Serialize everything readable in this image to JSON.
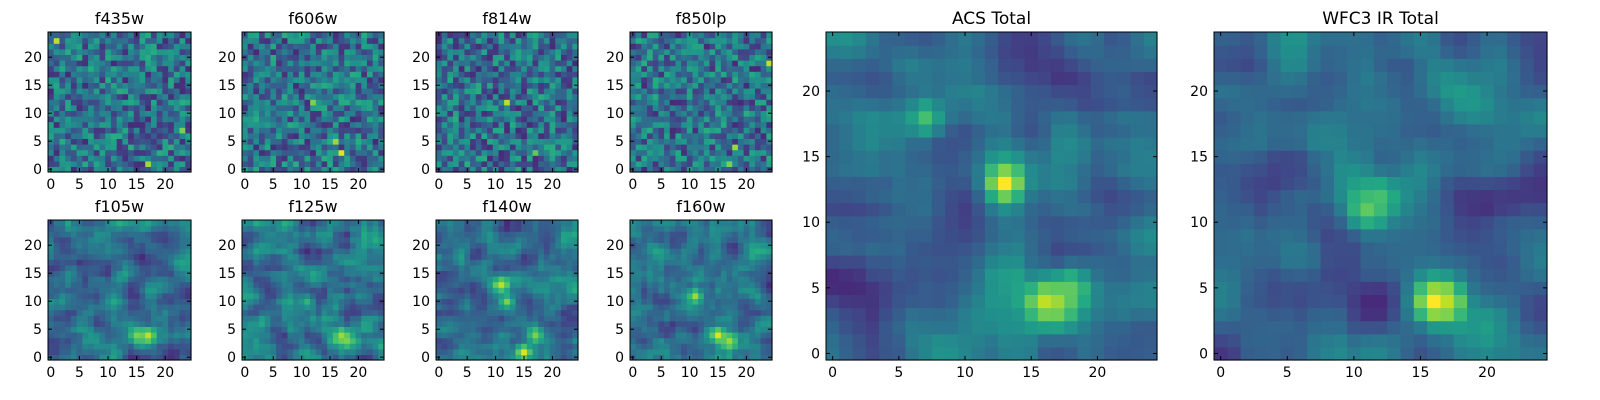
{
  "chart_data": [
    {
      "type": "heatmap",
      "title": "f435w",
      "colormap": "viridis",
      "xlim": [
        -0.5,
        24.5
      ],
      "ylim": [
        -0.5,
        24.5
      ],
      "xticks": [
        0,
        5,
        10,
        15,
        20
      ],
      "yticks": [
        0,
        5,
        10,
        15,
        20
      ],
      "hotspots": [
        {
          "x": 17,
          "y": 1,
          "value": 0.85
        },
        {
          "x": 23,
          "y": 7,
          "value": 0.8
        },
        {
          "x": 1,
          "y": 23,
          "value": 0.9
        }
      ]
    },
    {
      "type": "heatmap",
      "title": "f606w",
      "colormap": "viridis",
      "xlim": [
        -0.5,
        24.5
      ],
      "ylim": [
        -0.5,
        24.5
      ],
      "xticks": [
        0,
        5,
        10,
        15,
        20
      ],
      "yticks": [
        0,
        5,
        10,
        15,
        20
      ],
      "hotspots": [
        {
          "x": 12,
          "y": 12,
          "value": 0.8
        },
        {
          "x": 17,
          "y": 3,
          "value": 0.95
        },
        {
          "x": 16,
          "y": 5,
          "value": 0.85
        }
      ]
    },
    {
      "type": "heatmap",
      "title": "f814w",
      "colormap": "viridis",
      "xlim": [
        -0.5,
        24.5
      ],
      "ylim": [
        -0.5,
        24.5
      ],
      "xticks": [
        0,
        5,
        10,
        15,
        20
      ],
      "yticks": [
        0,
        5,
        10,
        15,
        20
      ],
      "hotspots": [
        {
          "x": 12,
          "y": 12,
          "value": 0.9
        },
        {
          "x": 17,
          "y": 3,
          "value": 0.75
        }
      ]
    },
    {
      "type": "heatmap",
      "title": "f850lp",
      "colormap": "viridis",
      "xlim": [
        -0.5,
        24.5
      ],
      "ylim": [
        -0.5,
        24.5
      ],
      "xticks": [
        0,
        5,
        10,
        15,
        20
      ],
      "yticks": [
        0,
        5,
        10,
        15,
        20
      ],
      "hotspots": [
        {
          "x": 24,
          "y": 19,
          "value": 0.9
        },
        {
          "x": 18,
          "y": 4,
          "value": 0.85
        },
        {
          "x": 17,
          "y": 1,
          "value": 0.8
        }
      ]
    },
    {
      "type": "heatmap",
      "title": "f105w",
      "colormap": "viridis",
      "xlim": [
        -0.5,
        24.5
      ],
      "ylim": [
        -0.5,
        24.5
      ],
      "xticks": [
        0,
        5,
        10,
        15,
        20
      ],
      "yticks": [
        0,
        5,
        10,
        15,
        20
      ],
      "hotspots": [
        {
          "x": 17,
          "y": 4,
          "value": 0.9
        },
        {
          "x": 15,
          "y": 4,
          "value": 0.8
        },
        {
          "x": 11,
          "y": 10,
          "value": 0.6
        }
      ]
    },
    {
      "type": "heatmap",
      "title": "f125w",
      "colormap": "viridis",
      "xlim": [
        -0.5,
        24.5
      ],
      "ylim": [
        -0.5,
        24.5
      ],
      "xticks": [
        0,
        5,
        10,
        15,
        20
      ],
      "yticks": [
        0,
        5,
        10,
        15,
        20
      ],
      "hotspots": [
        {
          "x": 17,
          "y": 4,
          "value": 0.85
        },
        {
          "x": 18,
          "y": 3,
          "value": 0.8
        },
        {
          "x": 11,
          "y": 10,
          "value": 0.65
        }
      ]
    },
    {
      "type": "heatmap",
      "title": "f140w",
      "colormap": "viridis",
      "xlim": [
        -0.5,
        24.5
      ],
      "ylim": [
        -0.5,
        24.5
      ],
      "xticks": [
        0,
        5,
        10,
        15,
        20
      ],
      "yticks": [
        0,
        5,
        10,
        15,
        20
      ],
      "hotspots": [
        {
          "x": 11,
          "y": 13,
          "value": 0.9
        },
        {
          "x": 12,
          "y": 10,
          "value": 0.8
        },
        {
          "x": 15,
          "y": 1,
          "value": 0.95
        },
        {
          "x": 17,
          "y": 4,
          "value": 0.8
        }
      ]
    },
    {
      "type": "heatmap",
      "title": "f160w",
      "colormap": "viridis",
      "xlim": [
        -0.5,
        24.5
      ],
      "ylim": [
        -0.5,
        24.5
      ],
      "xticks": [
        0,
        5,
        10,
        15,
        20
      ],
      "yticks": [
        0,
        5,
        10,
        15,
        20
      ],
      "hotspots": [
        {
          "x": 11,
          "y": 11,
          "value": 0.85
        },
        {
          "x": 15,
          "y": 4,
          "value": 0.95
        },
        {
          "x": 17,
          "y": 3,
          "value": 0.85
        }
      ]
    },
    {
      "type": "heatmap",
      "title": "ACS Total",
      "colormap": "viridis",
      "xlim": [
        -0.5,
        24.5
      ],
      "ylim": [
        -0.5,
        24.5
      ],
      "xticks": [
        0,
        5,
        10,
        15,
        20
      ],
      "yticks": [
        0,
        5,
        10,
        15,
        20
      ],
      "hotspots": [
        {
          "x": 13,
          "y": 13,
          "value": 1.0
        },
        {
          "x": 16,
          "y": 4,
          "value": 0.9
        },
        {
          "x": 17,
          "y": 4,
          "value": 0.85
        },
        {
          "x": 18,
          "y": 5,
          "value": 0.75
        },
        {
          "x": 7,
          "y": 18,
          "value": 0.7
        }
      ]
    },
    {
      "type": "heatmap",
      "title": "WFC3 IR Total",
      "colormap": "viridis",
      "xlim": [
        -0.5,
        24.5
      ],
      "ylim": [
        -0.5,
        24.5
      ],
      "xticks": [
        0,
        5,
        10,
        15,
        20
      ],
      "yticks": [
        0,
        5,
        10,
        15,
        20
      ],
      "hotspots": [
        {
          "x": 16,
          "y": 4,
          "value": 1.0
        },
        {
          "x": 17,
          "y": 4,
          "value": 0.9
        },
        {
          "x": 11,
          "y": 11,
          "value": 0.75
        },
        {
          "x": 12,
          "y": 12,
          "value": 0.7
        }
      ]
    }
  ]
}
